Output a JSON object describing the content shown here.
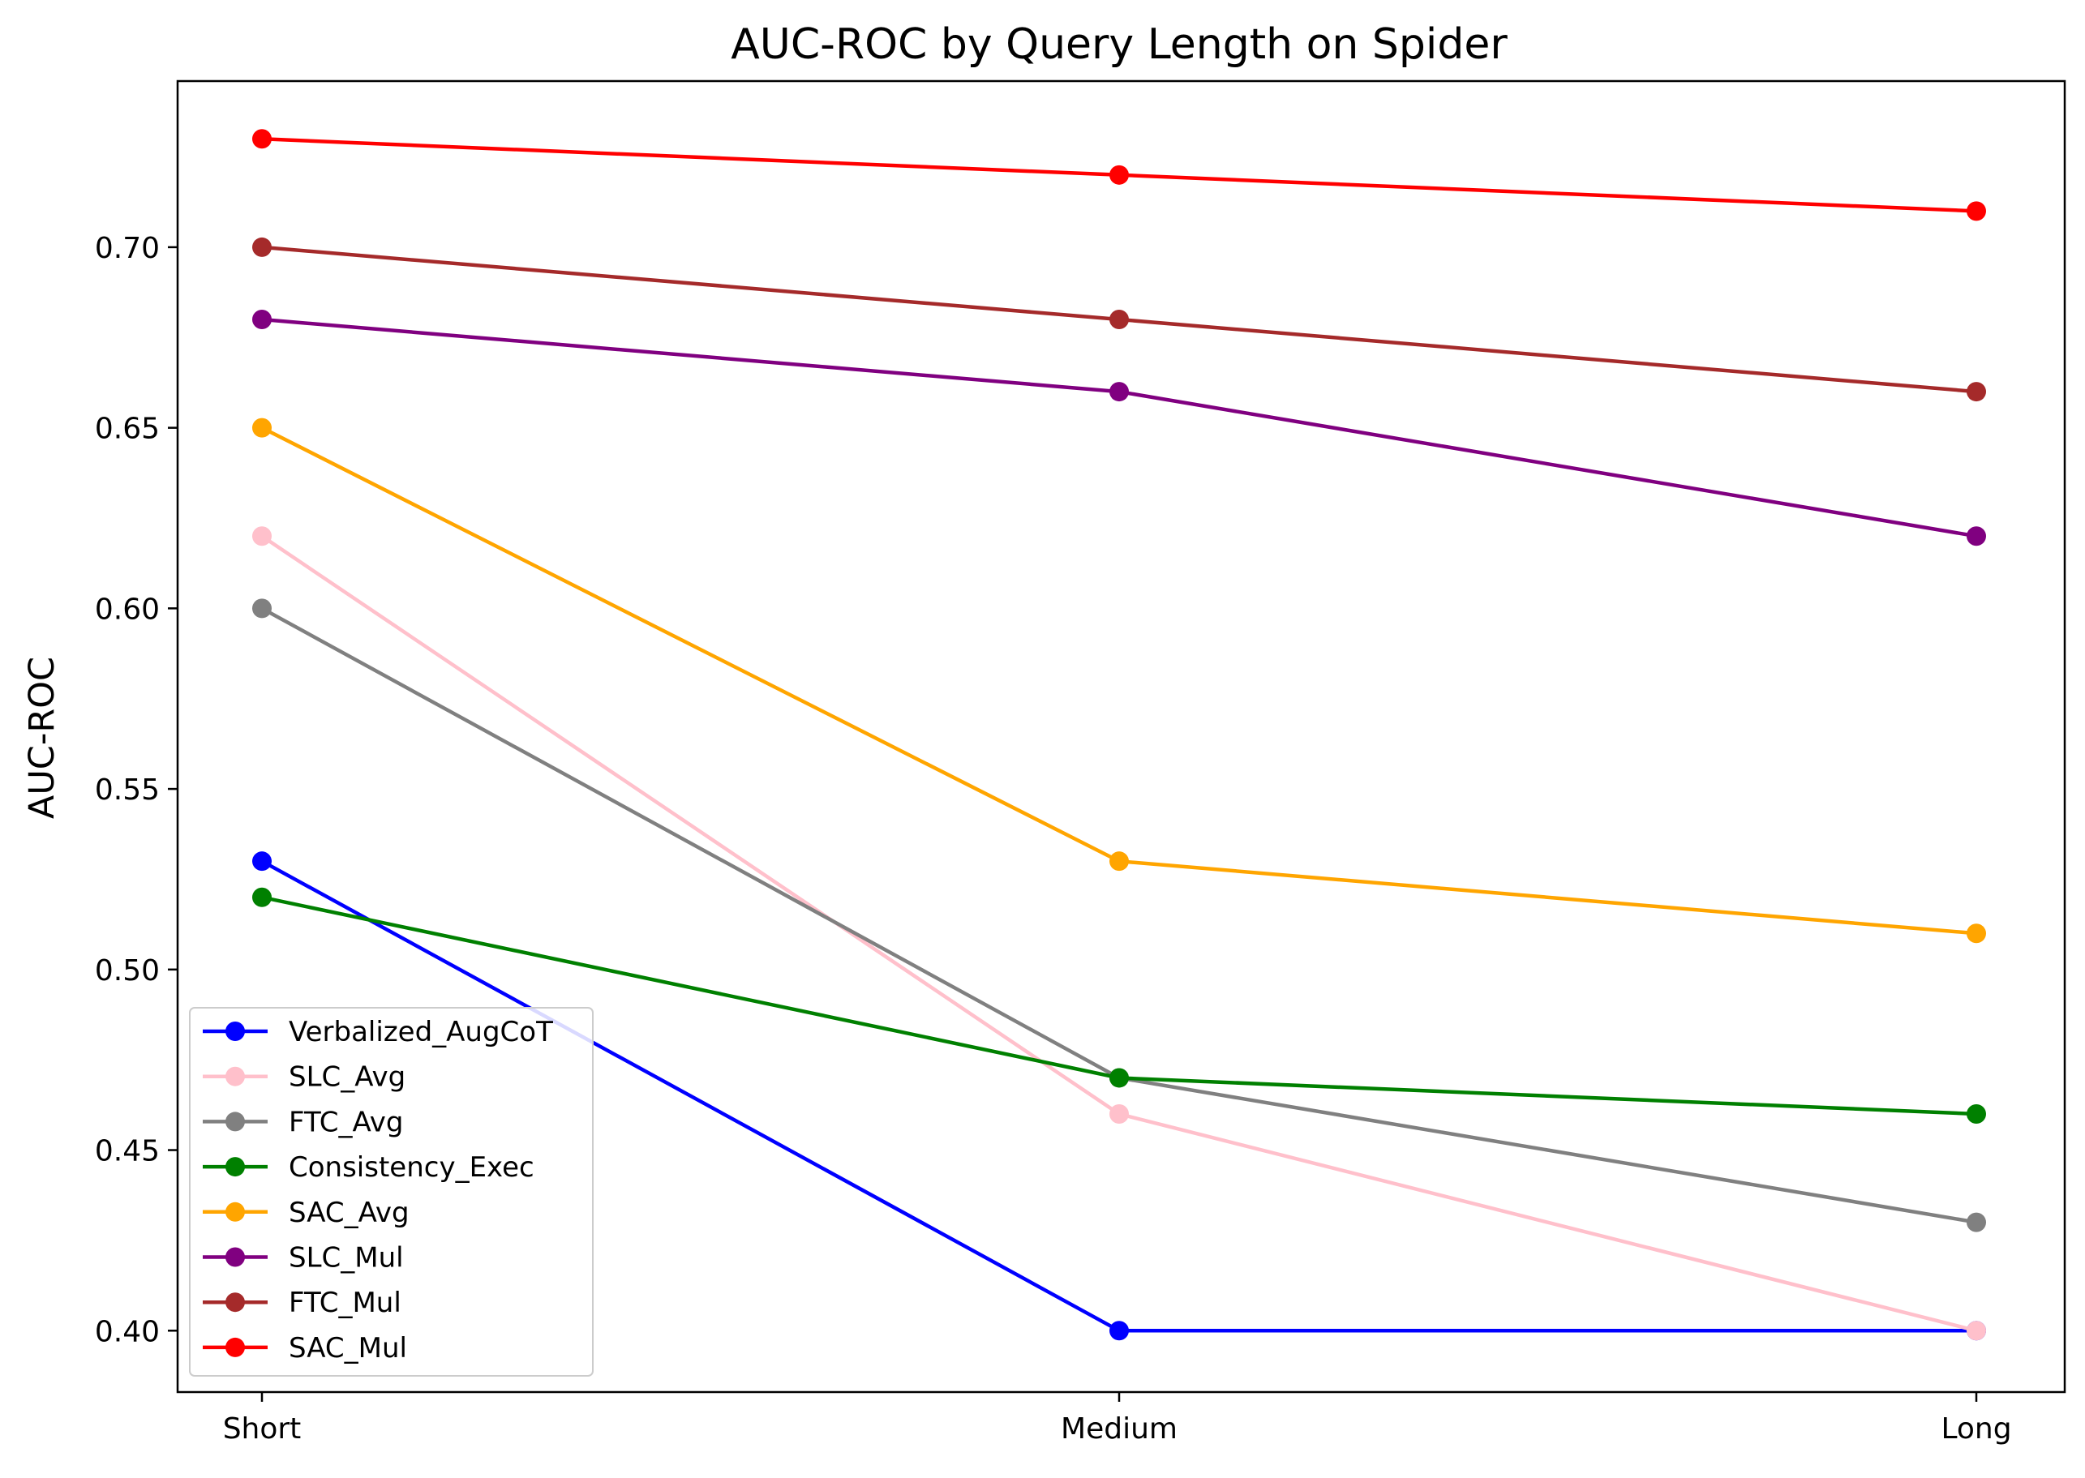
{
  "chart_data": {
    "type": "line",
    "title": "AUC-ROC by Query Length on Spider",
    "xlabel": "",
    "ylabel": "AUC-ROC",
    "categories": [
      "Short",
      "Medium",
      "Long"
    ],
    "ylim": [
      0.383,
      0.746
    ],
    "yticks": [
      0.4,
      0.45,
      0.5,
      0.55,
      0.6,
      0.65,
      0.7
    ],
    "ytick_labels": [
      "0.40",
      "0.45",
      "0.50",
      "0.55",
      "0.60",
      "0.65",
      "0.70"
    ],
    "grid": false,
    "legend_position": "lower-left",
    "marker": "circle",
    "series": [
      {
        "name": "Verbalized_AugCoT",
        "color": "#0000ff",
        "values": [
          0.53,
          0.4,
          0.4
        ]
      },
      {
        "name": "SLC_Avg",
        "color": "#ffc0cb",
        "values": [
          0.62,
          0.46,
          0.4
        ]
      },
      {
        "name": "FTC_Avg",
        "color": "#808080",
        "values": [
          0.6,
          0.47,
          0.43
        ]
      },
      {
        "name": "Consistency_Exec",
        "color": "#008000",
        "values": [
          0.52,
          0.47,
          0.46
        ]
      },
      {
        "name": "SAC_Avg",
        "color": "#ffa500",
        "values": [
          0.65,
          0.53,
          0.51
        ]
      },
      {
        "name": "SLC_Mul",
        "color": "#800080",
        "values": [
          0.68,
          0.66,
          0.62
        ]
      },
      {
        "name": "FTC_Mul",
        "color": "#a52a2a",
        "values": [
          0.7,
          0.68,
          0.66
        ]
      },
      {
        "name": "SAC_Mul",
        "color": "#ff0000",
        "values": [
          0.73,
          0.72,
          0.71
        ]
      }
    ]
  }
}
